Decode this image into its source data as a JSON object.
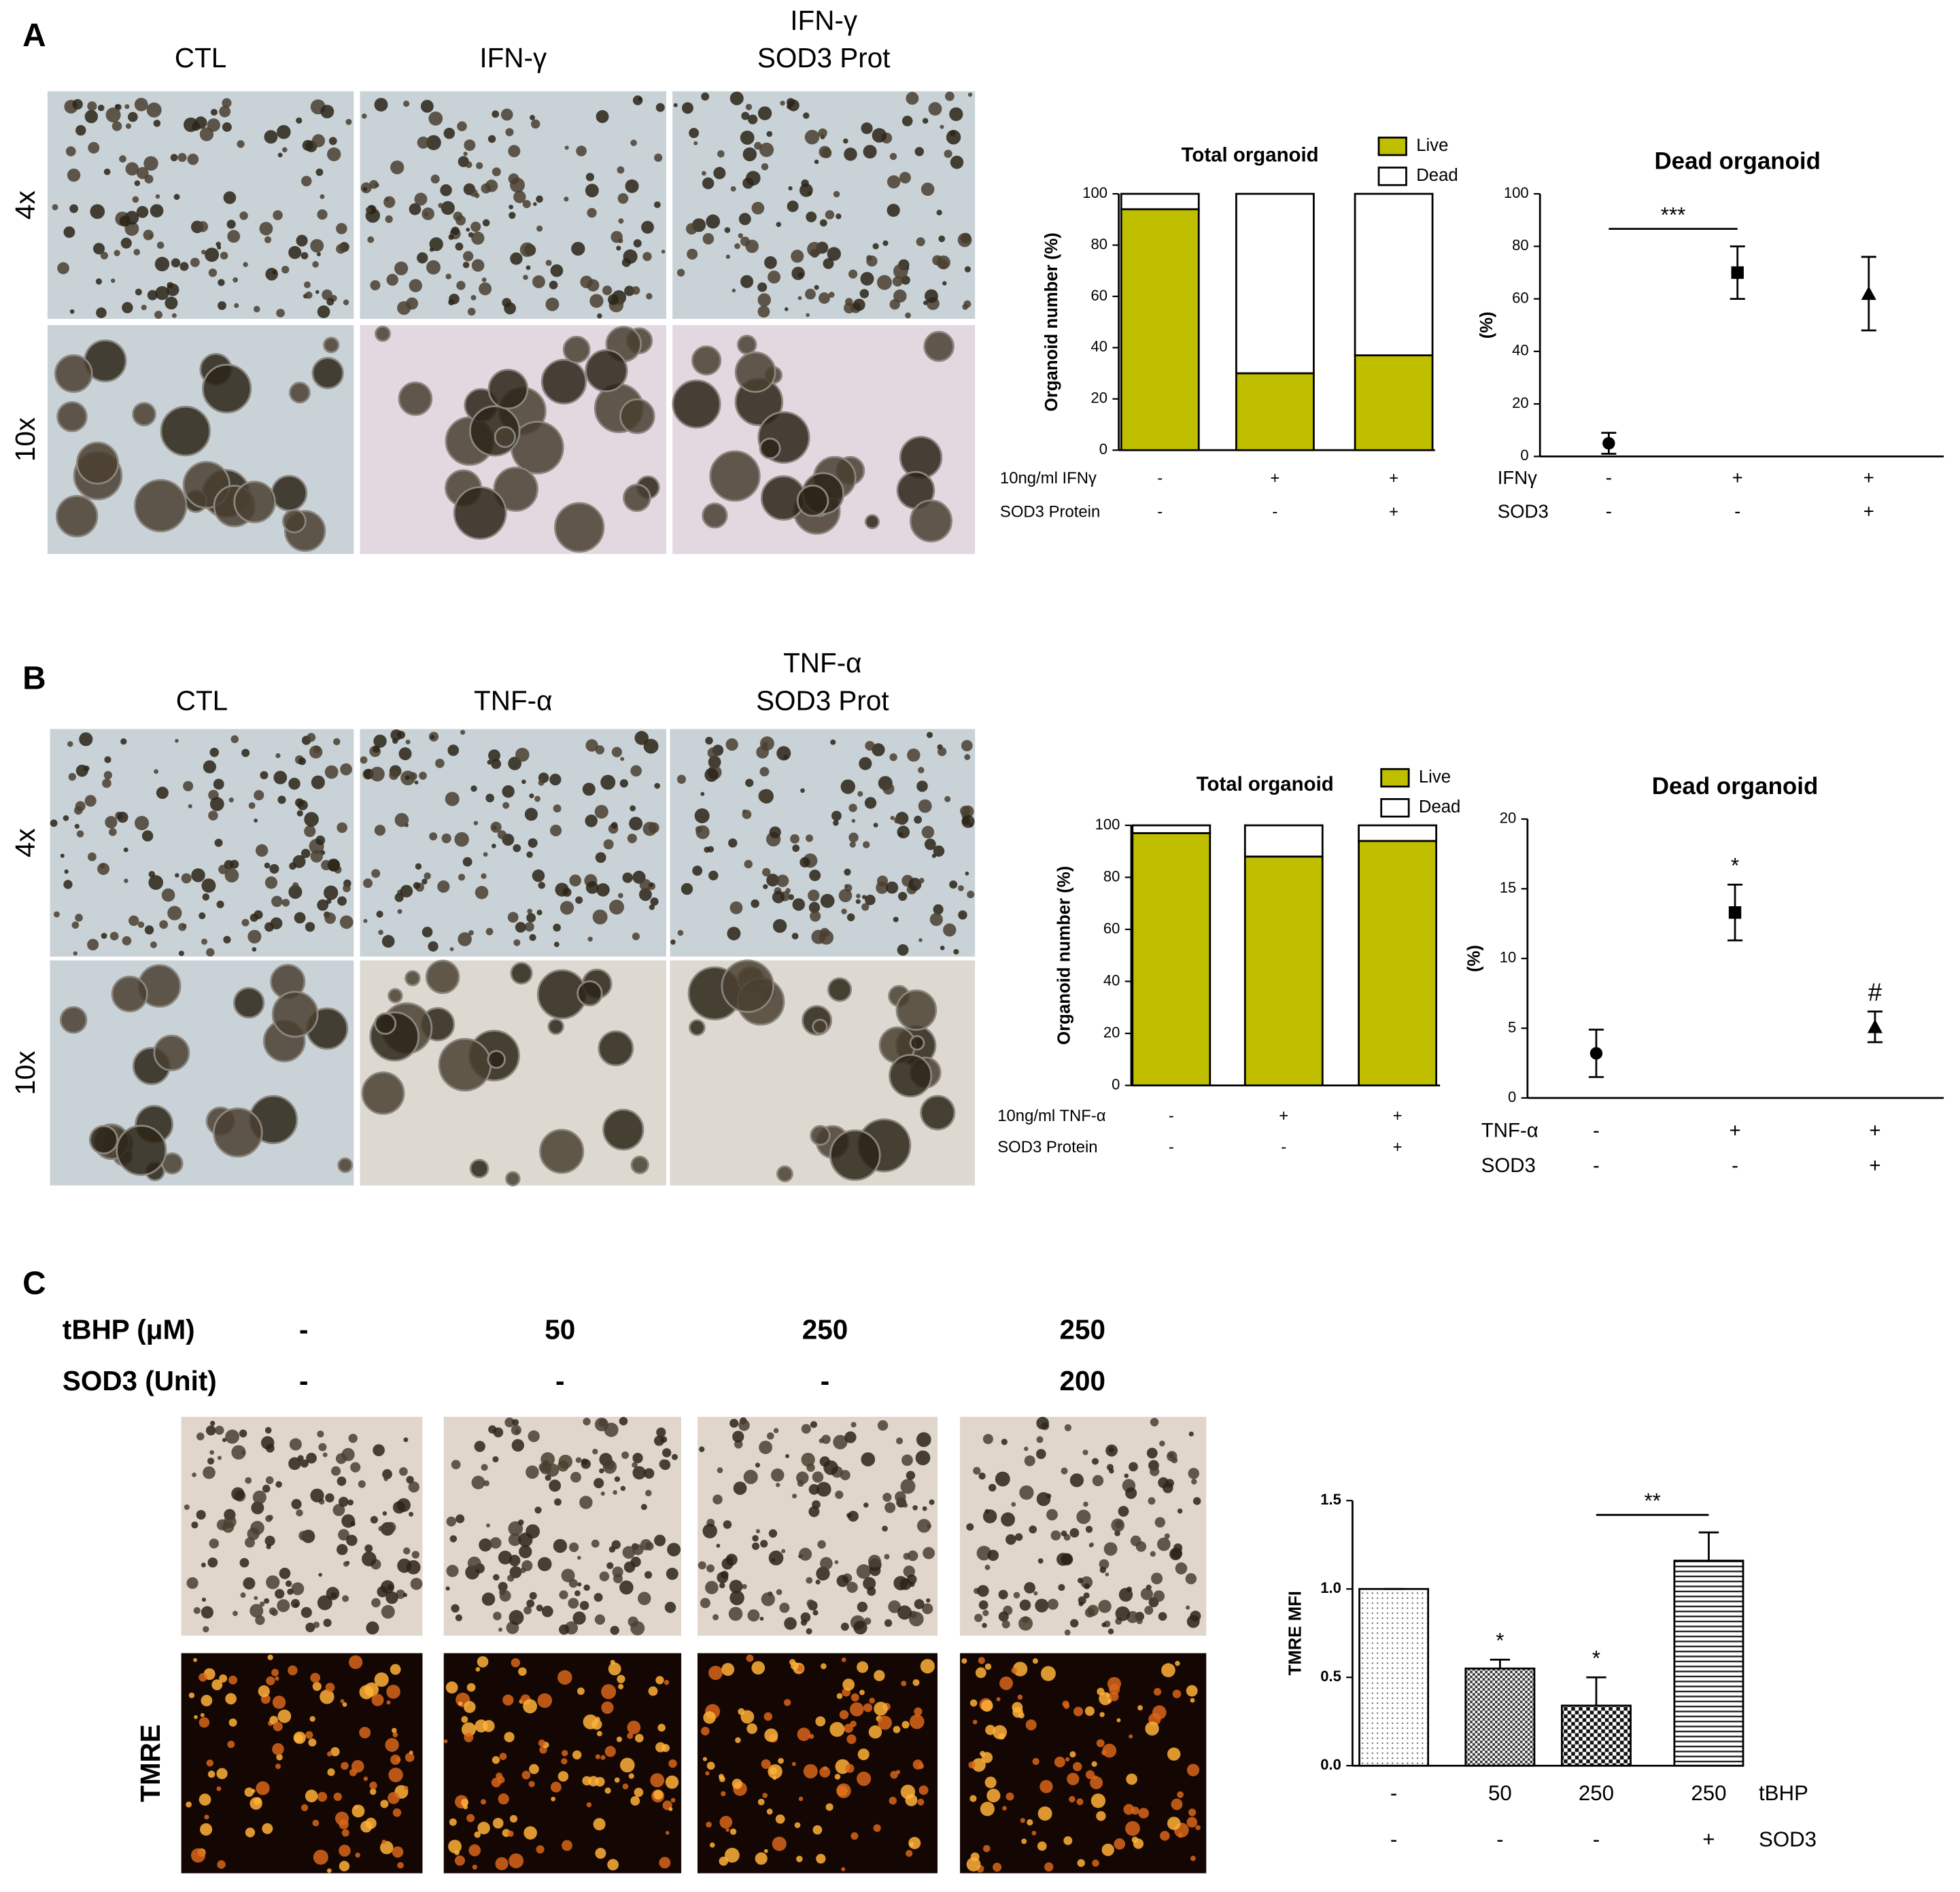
{
  "panels": [
    {
      "label": "A",
      "columns": [
        [
          "CTL"
        ],
        [
          "IFN-γ"
        ],
        [
          "IFN-γ",
          "SOD3 Prot"
        ]
      ],
      "rows": [
        "4x",
        "10x"
      ]
    },
    {
      "label": "B",
      "columns": [
        [
          "CTL"
        ],
        [
          "TNF-α"
        ],
        [
          "TNF-α",
          "SOD3 Prot"
        ]
      ],
      "rows": [
        "4x",
        "10x"
      ]
    }
  ],
  "panel_c": {
    "label": "C",
    "rows": [
      {
        "name": "tBHP (μM)",
        "values": [
          "-",
          "50",
          "250",
          "250"
        ]
      },
      {
        "name": "SOD3 (Unit)",
        "values": [
          "-",
          "-",
          "-",
          "200"
        ]
      }
    ],
    "image_label": "TMRE"
  },
  "chart_data": [
    {
      "type": "bar",
      "stacked": true,
      "title": "Total organoid",
      "ylabel": "Organoid number (%)",
      "ylim": [
        0,
        100
      ],
      "yticks": [
        0,
        20,
        40,
        60,
        80,
        100
      ],
      "series": [
        {
          "name": "Live",
          "color": "#bfbf00",
          "values": [
            94,
            30,
            37
          ]
        },
        {
          "name": "Dead",
          "color": "#ffffff",
          "values": [
            6,
            70,
            63
          ]
        }
      ],
      "conditions": [
        {
          "name": "10ng/ml IFNγ",
          "values": [
            "-",
            "+",
            "+"
          ]
        },
        {
          "name": "SOD3 Protein",
          "values": [
            "-",
            "-",
            "+"
          ]
        }
      ]
    },
    {
      "type": "scatter",
      "title": "Dead organoid",
      "ylabel": "(%)",
      "ylim": [
        0,
        100
      ],
      "yticks": [
        0,
        20,
        40,
        60,
        80,
        100
      ],
      "values": [
        5,
        70,
        62
      ],
      "errors": [
        4,
        10,
        14
      ],
      "markers": [
        "circle",
        "square",
        "triangle"
      ],
      "color": "#000000",
      "annotations": [
        {
          "text": "***",
          "between": [
            0,
            1
          ]
        }
      ],
      "conditions": [
        {
          "name": "IFNγ",
          "values": [
            "-",
            "+",
            "+"
          ]
        },
        {
          "name": "SOD3",
          "values": [
            "-",
            "-",
            "+"
          ]
        }
      ]
    },
    {
      "type": "bar",
      "stacked": true,
      "title": "Total organoid",
      "ylabel": "Organoid number (%)",
      "ylim": [
        0,
        100
      ],
      "yticks": [
        0,
        20,
        40,
        60,
        80,
        100
      ],
      "series": [
        {
          "name": "Live",
          "color": "#bfbf00",
          "values": [
            97,
            88,
            94
          ]
        },
        {
          "name": "Dead",
          "color": "#ffffff",
          "values": [
            3,
            12,
            6
          ]
        }
      ],
      "conditions": [
        {
          "name": "10ng/ml TNF-α",
          "values": [
            "-",
            "+",
            "+"
          ]
        },
        {
          "name": "SOD3 Protein",
          "values": [
            "-",
            "-",
            "+"
          ]
        }
      ]
    },
    {
      "type": "scatter",
      "title": "Dead organoid",
      "ylabel": "(%)",
      "ylim": [
        0,
        20
      ],
      "yticks": [
        0,
        5,
        10,
        15,
        20
      ],
      "values": [
        3.2,
        13.3,
        5.1
      ],
      "errors": [
        1.7,
        2,
        1.1
      ],
      "markers": [
        "circle",
        "square",
        "triangle"
      ],
      "color": "#000000",
      "annotations": [
        {
          "text": "*",
          "at": 1
        },
        {
          "text": "#",
          "at": 2
        }
      ],
      "conditions": [
        {
          "name": "TNF-α",
          "values": [
            "-",
            "+",
            "+"
          ]
        },
        {
          "name": "SOD3",
          "values": [
            "-",
            "-",
            "+"
          ]
        }
      ]
    },
    {
      "type": "bar",
      "ylabel": "TMRE MFI",
      "ylim": [
        0,
        1.5
      ],
      "yticks": [
        {
          "value": 0,
          "label": "0.0"
        },
        {
          "value": 0.5,
          "label": "0.5"
        },
        {
          "value": 1,
          "label": "1.0"
        },
        {
          "value": 1.5,
          "label": "1.5"
        }
      ],
      "values": [
        1,
        0.55,
        0.34,
        1.16
      ],
      "errors": [
        0,
        0.05,
        0.16,
        0.16
      ],
      "patterns": [
        "dots",
        "checker",
        "grid",
        "hlines"
      ],
      "annotations": [
        {
          "text": "*",
          "at": 1
        },
        {
          "text": "*",
          "at": 2
        },
        {
          "text": "**",
          "between": [
            2,
            3
          ]
        }
      ],
      "conditions": [
        {
          "name": "tBHP",
          "values": [
            "-",
            "50",
            "250",
            "250"
          ]
        },
        {
          "name": "SOD3",
          "values": [
            "-",
            "-",
            "-",
            "+"
          ]
        }
      ]
    }
  ]
}
